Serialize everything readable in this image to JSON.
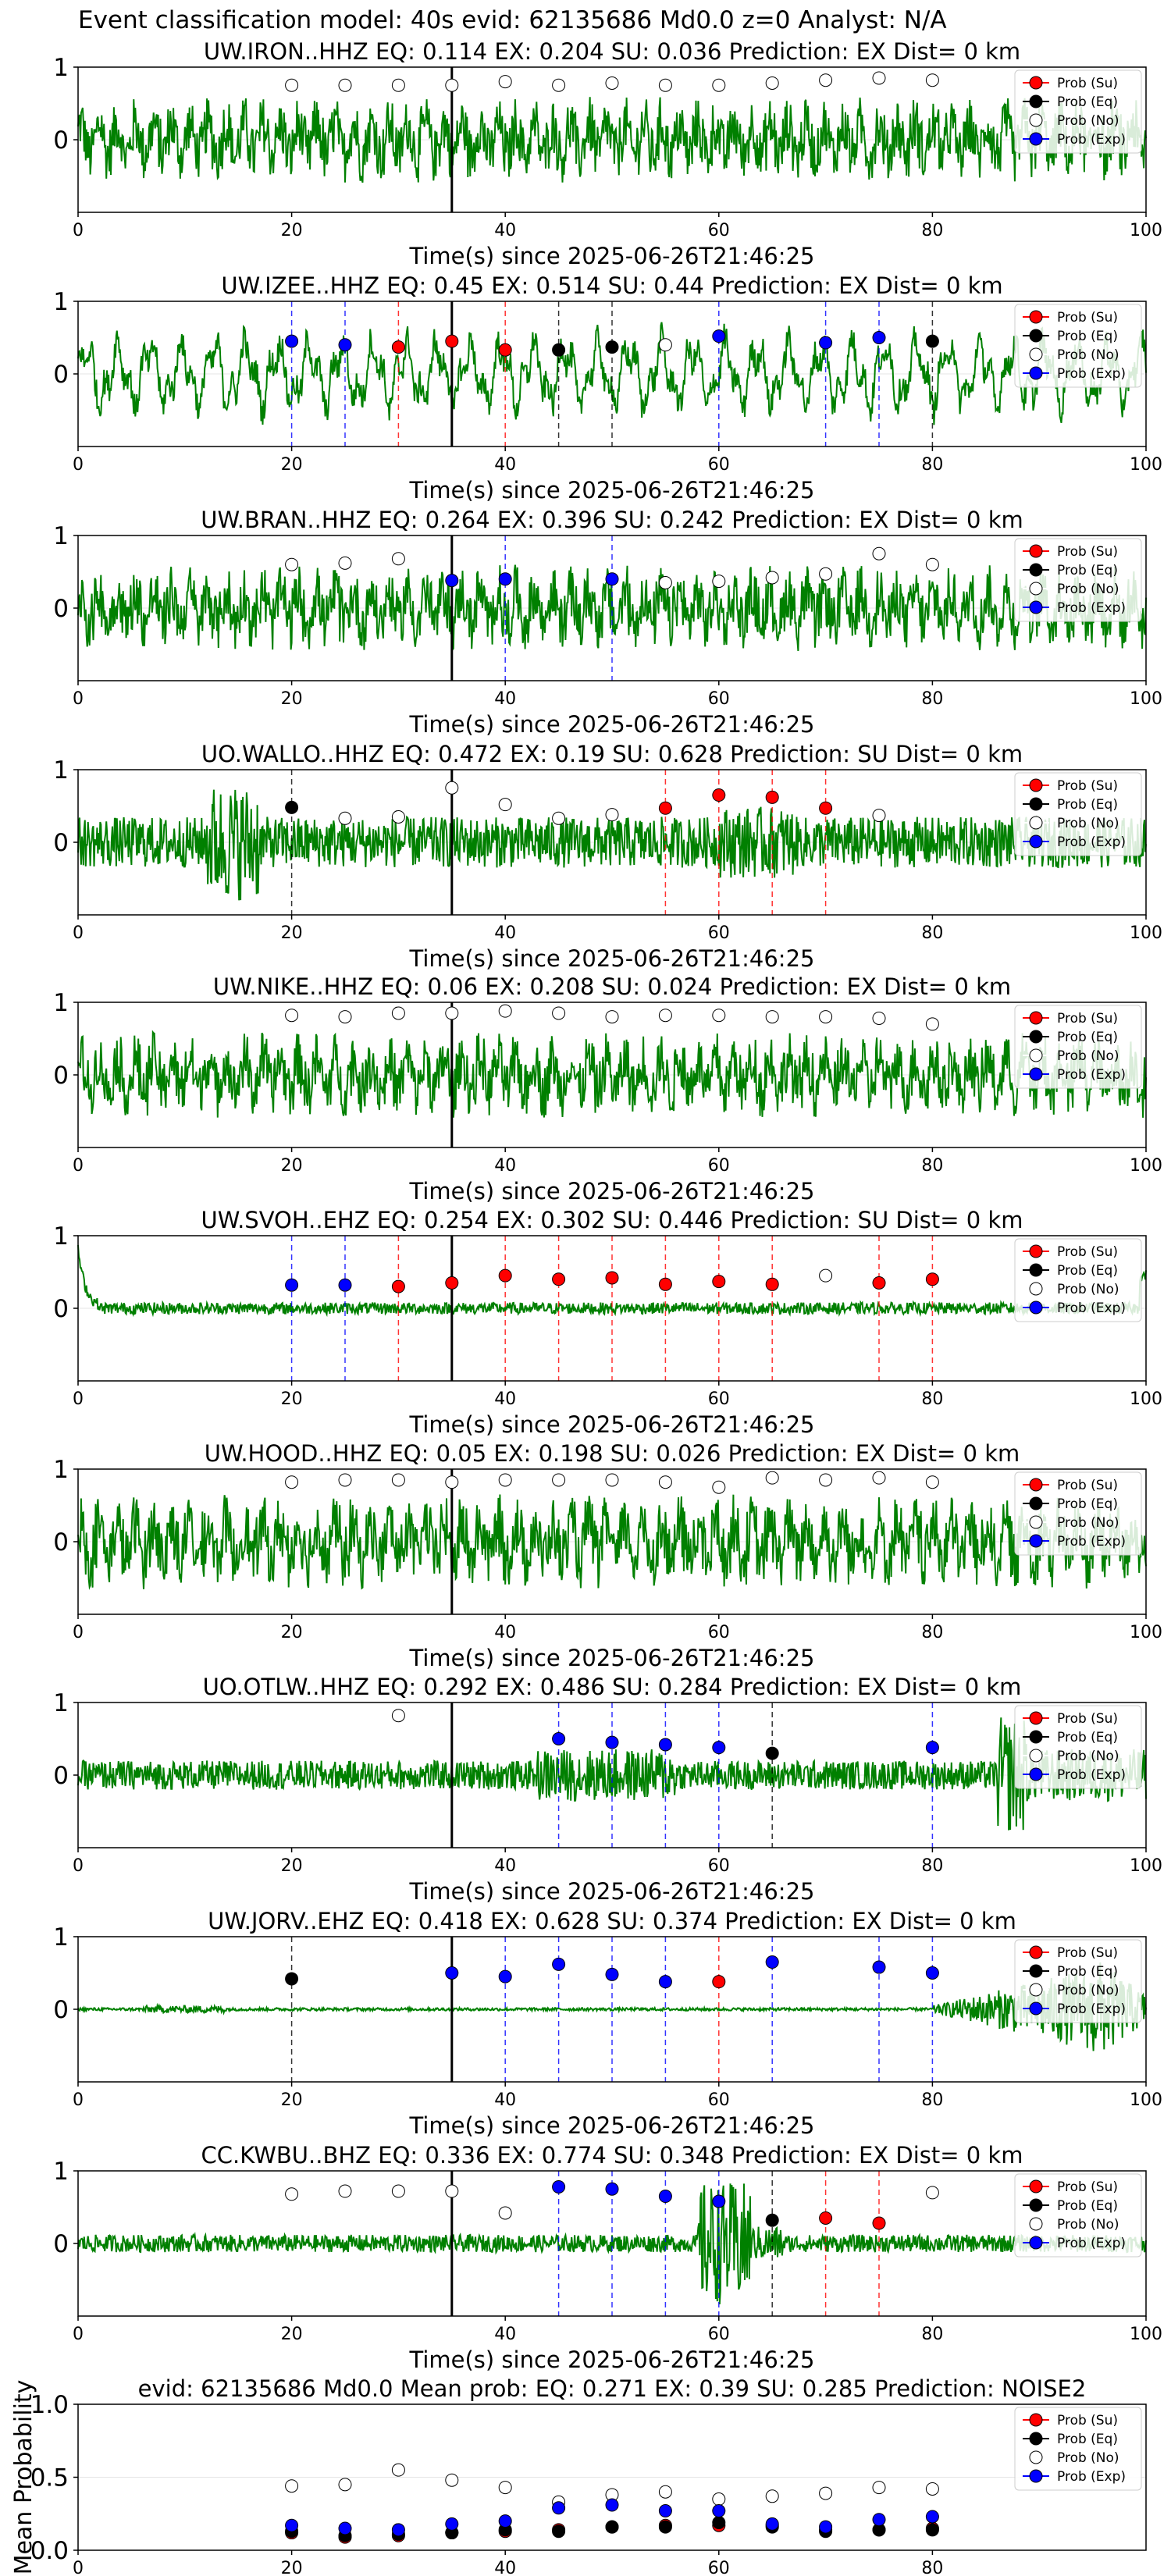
{
  "figure": {
    "title": "Event classification model: 40s evid: 62135686 Md0.0 z=0 Analyst: N/A",
    "xlabel": "Time(s) since 2025-06-26T21:46:25",
    "legend": [
      "Prob (Su)",
      "Prob (Eq)",
      "Prob (No)",
      "Prob (Exp)"
    ],
    "colors": {
      "waveform": "#008000",
      "su": "#ff0000",
      "eq": "#000000",
      "no": "#ffffff",
      "exp": "#0000ff",
      "event_line": "#000000",
      "grid": "#e6e6e6"
    }
  },
  "chart_data": [
    {
      "type": "line",
      "title": "UW.IRON..HHZ   EQ: 0.114  EX: 0.204  SU: 0.036   Prediction: EX    Dist= 0 km",
      "xlim": [
        0,
        100
      ],
      "ylim": [
        -1,
        1
      ],
      "xticks": [
        0,
        20,
        40,
        60,
        80,
        100
      ],
      "yticks": [
        1,
        0
      ],
      "event_time": 35,
      "waveform": {
        "style": "noisy",
        "amplitude": 0.5
      },
      "windows": [
        {
          "t": 20,
          "prob": 0.75,
          "class": "No"
        },
        {
          "t": 25,
          "prob": 0.75,
          "class": "No"
        },
        {
          "t": 30,
          "prob": 0.75,
          "class": "No"
        },
        {
          "t": 35,
          "prob": 0.75,
          "class": "No"
        },
        {
          "t": 40,
          "prob": 0.8,
          "class": "No"
        },
        {
          "t": 45,
          "prob": 0.75,
          "class": "No"
        },
        {
          "t": 50,
          "prob": 0.78,
          "class": "No"
        },
        {
          "t": 55,
          "prob": 0.75,
          "class": "No"
        },
        {
          "t": 60,
          "prob": 0.75,
          "class": "No"
        },
        {
          "t": 65,
          "prob": 0.78,
          "class": "No"
        },
        {
          "t": 70,
          "prob": 0.82,
          "class": "No"
        },
        {
          "t": 75,
          "prob": 0.85,
          "class": "No"
        },
        {
          "t": 80,
          "prob": 0.82,
          "class": "No"
        }
      ]
    },
    {
      "type": "line",
      "title": "UW.IZEE..HHZ   EQ: 0.45  EX: 0.514  SU: 0.44   Prediction: EX    Dist= 0 km",
      "xlim": [
        0,
        100
      ],
      "ylim": [
        -1,
        1
      ],
      "xticks": [
        0,
        20,
        40,
        60,
        80,
        100
      ],
      "yticks": [
        1,
        0
      ],
      "event_time": 35,
      "waveform": {
        "style": "wavy",
        "amplitude": 0.55
      },
      "windows": [
        {
          "t": 20,
          "prob": 0.45,
          "class": "Exp"
        },
        {
          "t": 25,
          "prob": 0.4,
          "class": "Exp"
        },
        {
          "t": 30,
          "prob": 0.37,
          "class": "Su"
        },
        {
          "t": 35,
          "prob": 0.45,
          "class": "Su"
        },
        {
          "t": 40,
          "prob": 0.33,
          "class": "Su"
        },
        {
          "t": 45,
          "prob": 0.33,
          "class": "Eq"
        },
        {
          "t": 50,
          "prob": 0.37,
          "class": "Eq"
        },
        {
          "t": 55,
          "prob": 0.4,
          "class": "No"
        },
        {
          "t": 60,
          "prob": 0.52,
          "class": "Exp"
        },
        {
          "t": 70,
          "prob": 0.43,
          "class": "Exp"
        },
        {
          "t": 75,
          "prob": 0.5,
          "class": "Exp"
        },
        {
          "t": 80,
          "prob": 0.45,
          "class": "Eq"
        }
      ]
    },
    {
      "type": "line",
      "title": "UW.BRAN..HHZ   EQ: 0.264  EX: 0.396  SU: 0.242   Prediction: EX    Dist= 0 km",
      "xlim": [
        0,
        100
      ],
      "ylim": [
        -1,
        1
      ],
      "xticks": [
        0,
        20,
        40,
        60,
        80,
        100
      ],
      "yticks": [
        1,
        0
      ],
      "event_time": 35,
      "waveform": {
        "style": "noisy",
        "amplitude": 0.5
      },
      "windows": [
        {
          "t": 20,
          "prob": 0.6,
          "class": "No"
        },
        {
          "t": 25,
          "prob": 0.62,
          "class": "No"
        },
        {
          "t": 30,
          "prob": 0.68,
          "class": "No"
        },
        {
          "t": 35,
          "prob": 0.38,
          "class": "Exp"
        },
        {
          "t": 40,
          "prob": 0.4,
          "class": "Exp"
        },
        {
          "t": 50,
          "prob": 0.4,
          "class": "Exp"
        },
        {
          "t": 55,
          "prob": 0.35,
          "class": "No"
        },
        {
          "t": 60,
          "prob": 0.37,
          "class": "No"
        },
        {
          "t": 65,
          "prob": 0.42,
          "class": "No"
        },
        {
          "t": 70,
          "prob": 0.47,
          "class": "No"
        },
        {
          "t": 75,
          "prob": 0.75,
          "class": "No"
        },
        {
          "t": 80,
          "prob": 0.6,
          "class": "No"
        }
      ]
    },
    {
      "type": "line",
      "title": "UO.WALLO..HHZ   EQ: 0.472  EX: 0.19  SU: 0.628   Prediction: SU    Dist= 0 km",
      "xlim": [
        0,
        100
      ],
      "ylim": [
        -1,
        1
      ],
      "xticks": [
        0,
        20,
        40,
        60,
        80,
        100
      ],
      "yticks": [
        1,
        0
      ],
      "event_time": 35,
      "waveform": {
        "style": "burst",
        "amplitude": 0.35
      },
      "windows": [
        {
          "t": 20,
          "prob": 0.48,
          "class": "Eq"
        },
        {
          "t": 25,
          "prob": 0.33,
          "class": "No"
        },
        {
          "t": 30,
          "prob": 0.35,
          "class": "No"
        },
        {
          "t": 35,
          "prob": 0.75,
          "class": "No"
        },
        {
          "t": 40,
          "prob": 0.52,
          "class": "No"
        },
        {
          "t": 45,
          "prob": 0.33,
          "class": "No"
        },
        {
          "t": 50,
          "prob": 0.38,
          "class": "No"
        },
        {
          "t": 55,
          "prob": 0.47,
          "class": "Su"
        },
        {
          "t": 60,
          "prob": 0.65,
          "class": "Su"
        },
        {
          "t": 65,
          "prob": 0.62,
          "class": "Su"
        },
        {
          "t": 70,
          "prob": 0.47,
          "class": "Su"
        },
        {
          "t": 75,
          "prob": 0.37,
          "class": "No"
        }
      ]
    },
    {
      "type": "line",
      "title": "UW.NIKE..HHZ   EQ: 0.06  EX: 0.208  SU: 0.024   Prediction: EX    Dist= 0 km",
      "xlim": [
        0,
        100
      ],
      "ylim": [
        -1,
        1
      ],
      "xticks": [
        0,
        20,
        40,
        60,
        80,
        100
      ],
      "yticks": [
        1,
        0
      ],
      "event_time": 35,
      "waveform": {
        "style": "noisy",
        "amplitude": 0.5
      },
      "windows": [
        {
          "t": 20,
          "prob": 0.82,
          "class": "No"
        },
        {
          "t": 25,
          "prob": 0.8,
          "class": "No"
        },
        {
          "t": 30,
          "prob": 0.85,
          "class": "No"
        },
        {
          "t": 35,
          "prob": 0.85,
          "class": "No"
        },
        {
          "t": 40,
          "prob": 0.88,
          "class": "No"
        },
        {
          "t": 45,
          "prob": 0.85,
          "class": "No"
        },
        {
          "t": 50,
          "prob": 0.8,
          "class": "No"
        },
        {
          "t": 55,
          "prob": 0.82,
          "class": "No"
        },
        {
          "t": 60,
          "prob": 0.82,
          "class": "No"
        },
        {
          "t": 65,
          "prob": 0.8,
          "class": "No"
        },
        {
          "t": 70,
          "prob": 0.8,
          "class": "No"
        },
        {
          "t": 75,
          "prob": 0.78,
          "class": "No"
        },
        {
          "t": 80,
          "prob": 0.7,
          "class": "No"
        }
      ]
    },
    {
      "type": "line",
      "title": "UW.SVOH..EHZ   EQ: 0.254  EX: 0.302  SU: 0.446   Prediction: SU    Dist= 0 km",
      "xlim": [
        0,
        100
      ],
      "ylim": [
        -1,
        1
      ],
      "xticks": [
        0,
        20,
        40,
        60,
        80,
        100
      ],
      "yticks": [
        1,
        0
      ],
      "event_time": 35,
      "waveform": {
        "style": "quiet",
        "amplitude": 0.08
      },
      "windows": [
        {
          "t": 20,
          "prob": 0.32,
          "class": "Exp"
        },
        {
          "t": 25,
          "prob": 0.32,
          "class": "Exp"
        },
        {
          "t": 30,
          "prob": 0.3,
          "class": "Su"
        },
        {
          "t": 35,
          "prob": 0.35,
          "class": "Su"
        },
        {
          "t": 40,
          "prob": 0.45,
          "class": "Su"
        },
        {
          "t": 45,
          "prob": 0.4,
          "class": "Su"
        },
        {
          "t": 50,
          "prob": 0.42,
          "class": "Su"
        },
        {
          "t": 55,
          "prob": 0.33,
          "class": "Su"
        },
        {
          "t": 60,
          "prob": 0.37,
          "class": "Su"
        },
        {
          "t": 65,
          "prob": 0.33,
          "class": "Su"
        },
        {
          "t": 70,
          "prob": 0.45,
          "class": "No"
        },
        {
          "t": 75,
          "prob": 0.35,
          "class": "Su"
        },
        {
          "t": 80,
          "prob": 0.4,
          "class": "Su"
        }
      ]
    },
    {
      "type": "line",
      "title": "UW.HOOD..HHZ   EQ: 0.05  EX: 0.198  SU: 0.026   Prediction: EX    Dist= 0 km",
      "xlim": [
        0,
        100
      ],
      "ylim": [
        -1,
        1
      ],
      "xticks": [
        0,
        20,
        40,
        60,
        80,
        100
      ],
      "yticks": [
        1,
        0
      ],
      "event_time": 35,
      "waveform": {
        "style": "noisy",
        "amplitude": 0.55
      },
      "windows": [
        {
          "t": 20,
          "prob": 0.82,
          "class": "No"
        },
        {
          "t": 25,
          "prob": 0.85,
          "class": "No"
        },
        {
          "t": 30,
          "prob": 0.85,
          "class": "No"
        },
        {
          "t": 35,
          "prob": 0.82,
          "class": "No"
        },
        {
          "t": 40,
          "prob": 0.85,
          "class": "No"
        },
        {
          "t": 45,
          "prob": 0.85,
          "class": "No"
        },
        {
          "t": 50,
          "prob": 0.85,
          "class": "No"
        },
        {
          "t": 55,
          "prob": 0.82,
          "class": "No"
        },
        {
          "t": 60,
          "prob": 0.75,
          "class": "No"
        },
        {
          "t": 65,
          "prob": 0.88,
          "class": "No"
        },
        {
          "t": 70,
          "prob": 0.85,
          "class": "No"
        },
        {
          "t": 75,
          "prob": 0.88,
          "class": "No"
        },
        {
          "t": 80,
          "prob": 0.82,
          "class": "No"
        }
      ]
    },
    {
      "type": "line",
      "title": "UO.OTLW..HHZ   EQ: 0.292  EX: 0.486  SU: 0.284   Prediction: EX    Dist= 0 km",
      "xlim": [
        0,
        100
      ],
      "ylim": [
        -1,
        1
      ],
      "xticks": [
        0,
        20,
        40,
        60,
        80,
        100
      ],
      "yticks": [
        1,
        0
      ],
      "event_time": 35,
      "waveform": {
        "style": "otlw",
        "amplitude": 0.2
      },
      "windows": [
        {
          "t": 30,
          "prob": 0.82,
          "class": "No"
        },
        {
          "t": 45,
          "prob": 0.5,
          "class": "Exp"
        },
        {
          "t": 50,
          "prob": 0.45,
          "class": "Exp"
        },
        {
          "t": 55,
          "prob": 0.42,
          "class": "Exp"
        },
        {
          "t": 60,
          "prob": 0.38,
          "class": "Exp"
        },
        {
          "t": 65,
          "prob": 0.3,
          "class": "Eq"
        },
        {
          "t": 80,
          "prob": 0.38,
          "class": "Exp"
        }
      ]
    },
    {
      "type": "line",
      "title": "UW.JORV..EHZ   EQ: 0.418  EX: 0.628  SU: 0.374   Prediction: EX    Dist= 0 km",
      "xlim": [
        0,
        100
      ],
      "ylim": [
        -1,
        1
      ],
      "xticks": [
        0,
        20,
        40,
        60,
        80,
        100
      ],
      "yticks": [
        1,
        0
      ],
      "event_time": 35,
      "waveform": {
        "style": "jorv",
        "amplitude": 0.02
      },
      "windows": [
        {
          "t": 20,
          "prob": 0.42,
          "class": "Eq"
        },
        {
          "t": 35,
          "prob": 0.5,
          "class": "Exp"
        },
        {
          "t": 40,
          "prob": 0.45,
          "class": "Exp"
        },
        {
          "t": 45,
          "prob": 0.62,
          "class": "Exp"
        },
        {
          "t": 50,
          "prob": 0.48,
          "class": "Exp"
        },
        {
          "t": 55,
          "prob": 0.38,
          "class": "Exp"
        },
        {
          "t": 60,
          "prob": 0.38,
          "class": "Su"
        },
        {
          "t": 65,
          "prob": 0.65,
          "class": "Exp"
        },
        {
          "t": 75,
          "prob": 0.58,
          "class": "Exp"
        },
        {
          "t": 80,
          "prob": 0.5,
          "class": "Exp"
        }
      ]
    },
    {
      "type": "line",
      "title": "CC.KWBU..BHZ   EQ: 0.336  EX: 0.774  SU: 0.348   Prediction: EX    Dist= 0 km",
      "xlim": [
        0,
        100
      ],
      "ylim": [
        -1,
        1
      ],
      "xticks": [
        0,
        20,
        40,
        60,
        80,
        100
      ],
      "yticks": [
        1,
        0
      ],
      "event_time": 35,
      "waveform": {
        "style": "kwbu",
        "amplitude": 0.12
      },
      "windows": [
        {
          "t": 20,
          "prob": 0.68,
          "class": "No"
        },
        {
          "t": 25,
          "prob": 0.72,
          "class": "No"
        },
        {
          "t": 30,
          "prob": 0.72,
          "class": "No"
        },
        {
          "t": 35,
          "prob": 0.72,
          "class": "No"
        },
        {
          "t": 40,
          "prob": 0.42,
          "class": "No"
        },
        {
          "t": 45,
          "prob": 0.78,
          "class": "Exp"
        },
        {
          "t": 50,
          "prob": 0.75,
          "class": "Exp"
        },
        {
          "t": 55,
          "prob": 0.65,
          "class": "Exp"
        },
        {
          "t": 60,
          "prob": 0.58,
          "class": "Exp"
        },
        {
          "t": 65,
          "prob": 0.32,
          "class": "Eq"
        },
        {
          "t": 70,
          "prob": 0.35,
          "class": "Su"
        },
        {
          "t": 75,
          "prob": 0.28,
          "class": "Su"
        },
        {
          "t": 80,
          "prob": 0.7,
          "class": "No"
        }
      ]
    },
    {
      "type": "scatter",
      "title": "evid: 62135686   Md0.0   Mean prob:   EQ: 0.271  EX: 0.39  SU: 0.285   Prediction: NOISE2",
      "ylabel": "Mean Probability",
      "xlim": [
        0,
        100
      ],
      "ylim": [
        0,
        1
      ],
      "xticks": [
        0,
        20,
        40,
        60,
        80
      ],
      "yticks": [
        1.0,
        0.5,
        0.0
      ],
      "mean": true,
      "x": [
        20,
        25,
        30,
        35,
        40,
        45,
        50,
        55,
        60,
        65,
        70,
        75,
        80
      ],
      "series": [
        {
          "name": "Prob (Su)",
          "values": [
            0.12,
            0.09,
            0.1,
            0.12,
            0.13,
            0.14,
            0.16,
            0.17,
            0.17,
            0.17,
            0.14,
            0.14,
            0.15
          ]
        },
        {
          "name": "Prob (Eq)",
          "values": [
            0.13,
            0.1,
            0.11,
            0.12,
            0.14,
            0.13,
            0.16,
            0.16,
            0.19,
            0.16,
            0.13,
            0.14,
            0.14
          ]
        },
        {
          "name": "Prob (No)",
          "values": [
            0.44,
            0.45,
            0.55,
            0.48,
            0.43,
            0.33,
            0.38,
            0.4,
            0.35,
            0.37,
            0.39,
            0.43,
            0.42
          ]
        },
        {
          "name": "Prob (Exp)",
          "values": [
            0.17,
            0.15,
            0.14,
            0.18,
            0.2,
            0.29,
            0.31,
            0.27,
            0.27,
            0.18,
            0.16,
            0.21,
            0.23
          ]
        }
      ]
    }
  ]
}
